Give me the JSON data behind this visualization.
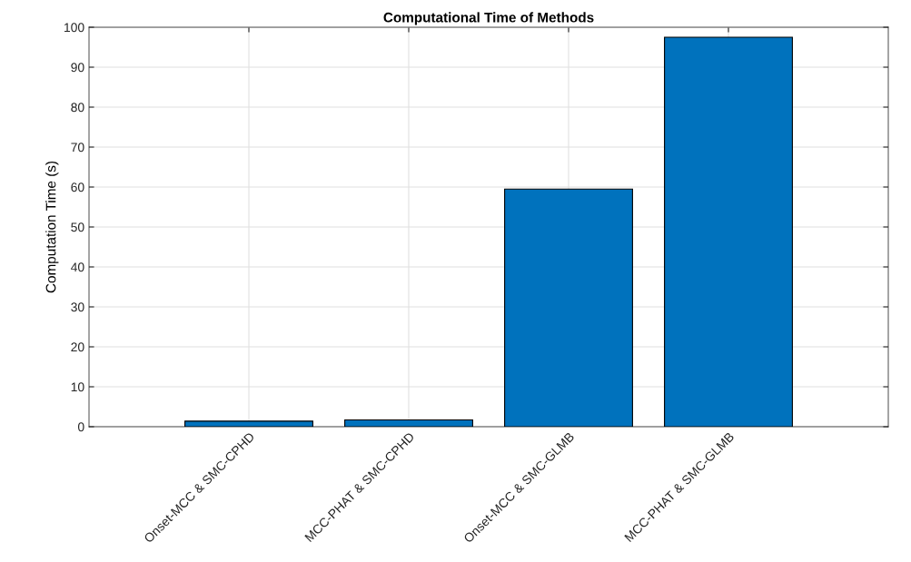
{
  "chart_data": {
    "type": "bar",
    "title": "Computational Time of Methods",
    "ylabel": "Computation Time (s)",
    "categories": [
      "Onset-MCC & SMC-CPHD",
      "MCC-PHAT & SMC-CPHD",
      "Onset-MCC & SMC-GLMB",
      "MCC-PHAT & SMC-GLMB"
    ],
    "values": [
      1.4,
      1.7,
      59.5,
      97.5
    ],
    "color": "#0072bd",
    "ylim": [
      0,
      100
    ],
    "yticks": [
      0,
      10,
      20,
      30,
      40,
      50,
      60,
      70,
      80,
      90,
      100
    ],
    "grid": true
  }
}
